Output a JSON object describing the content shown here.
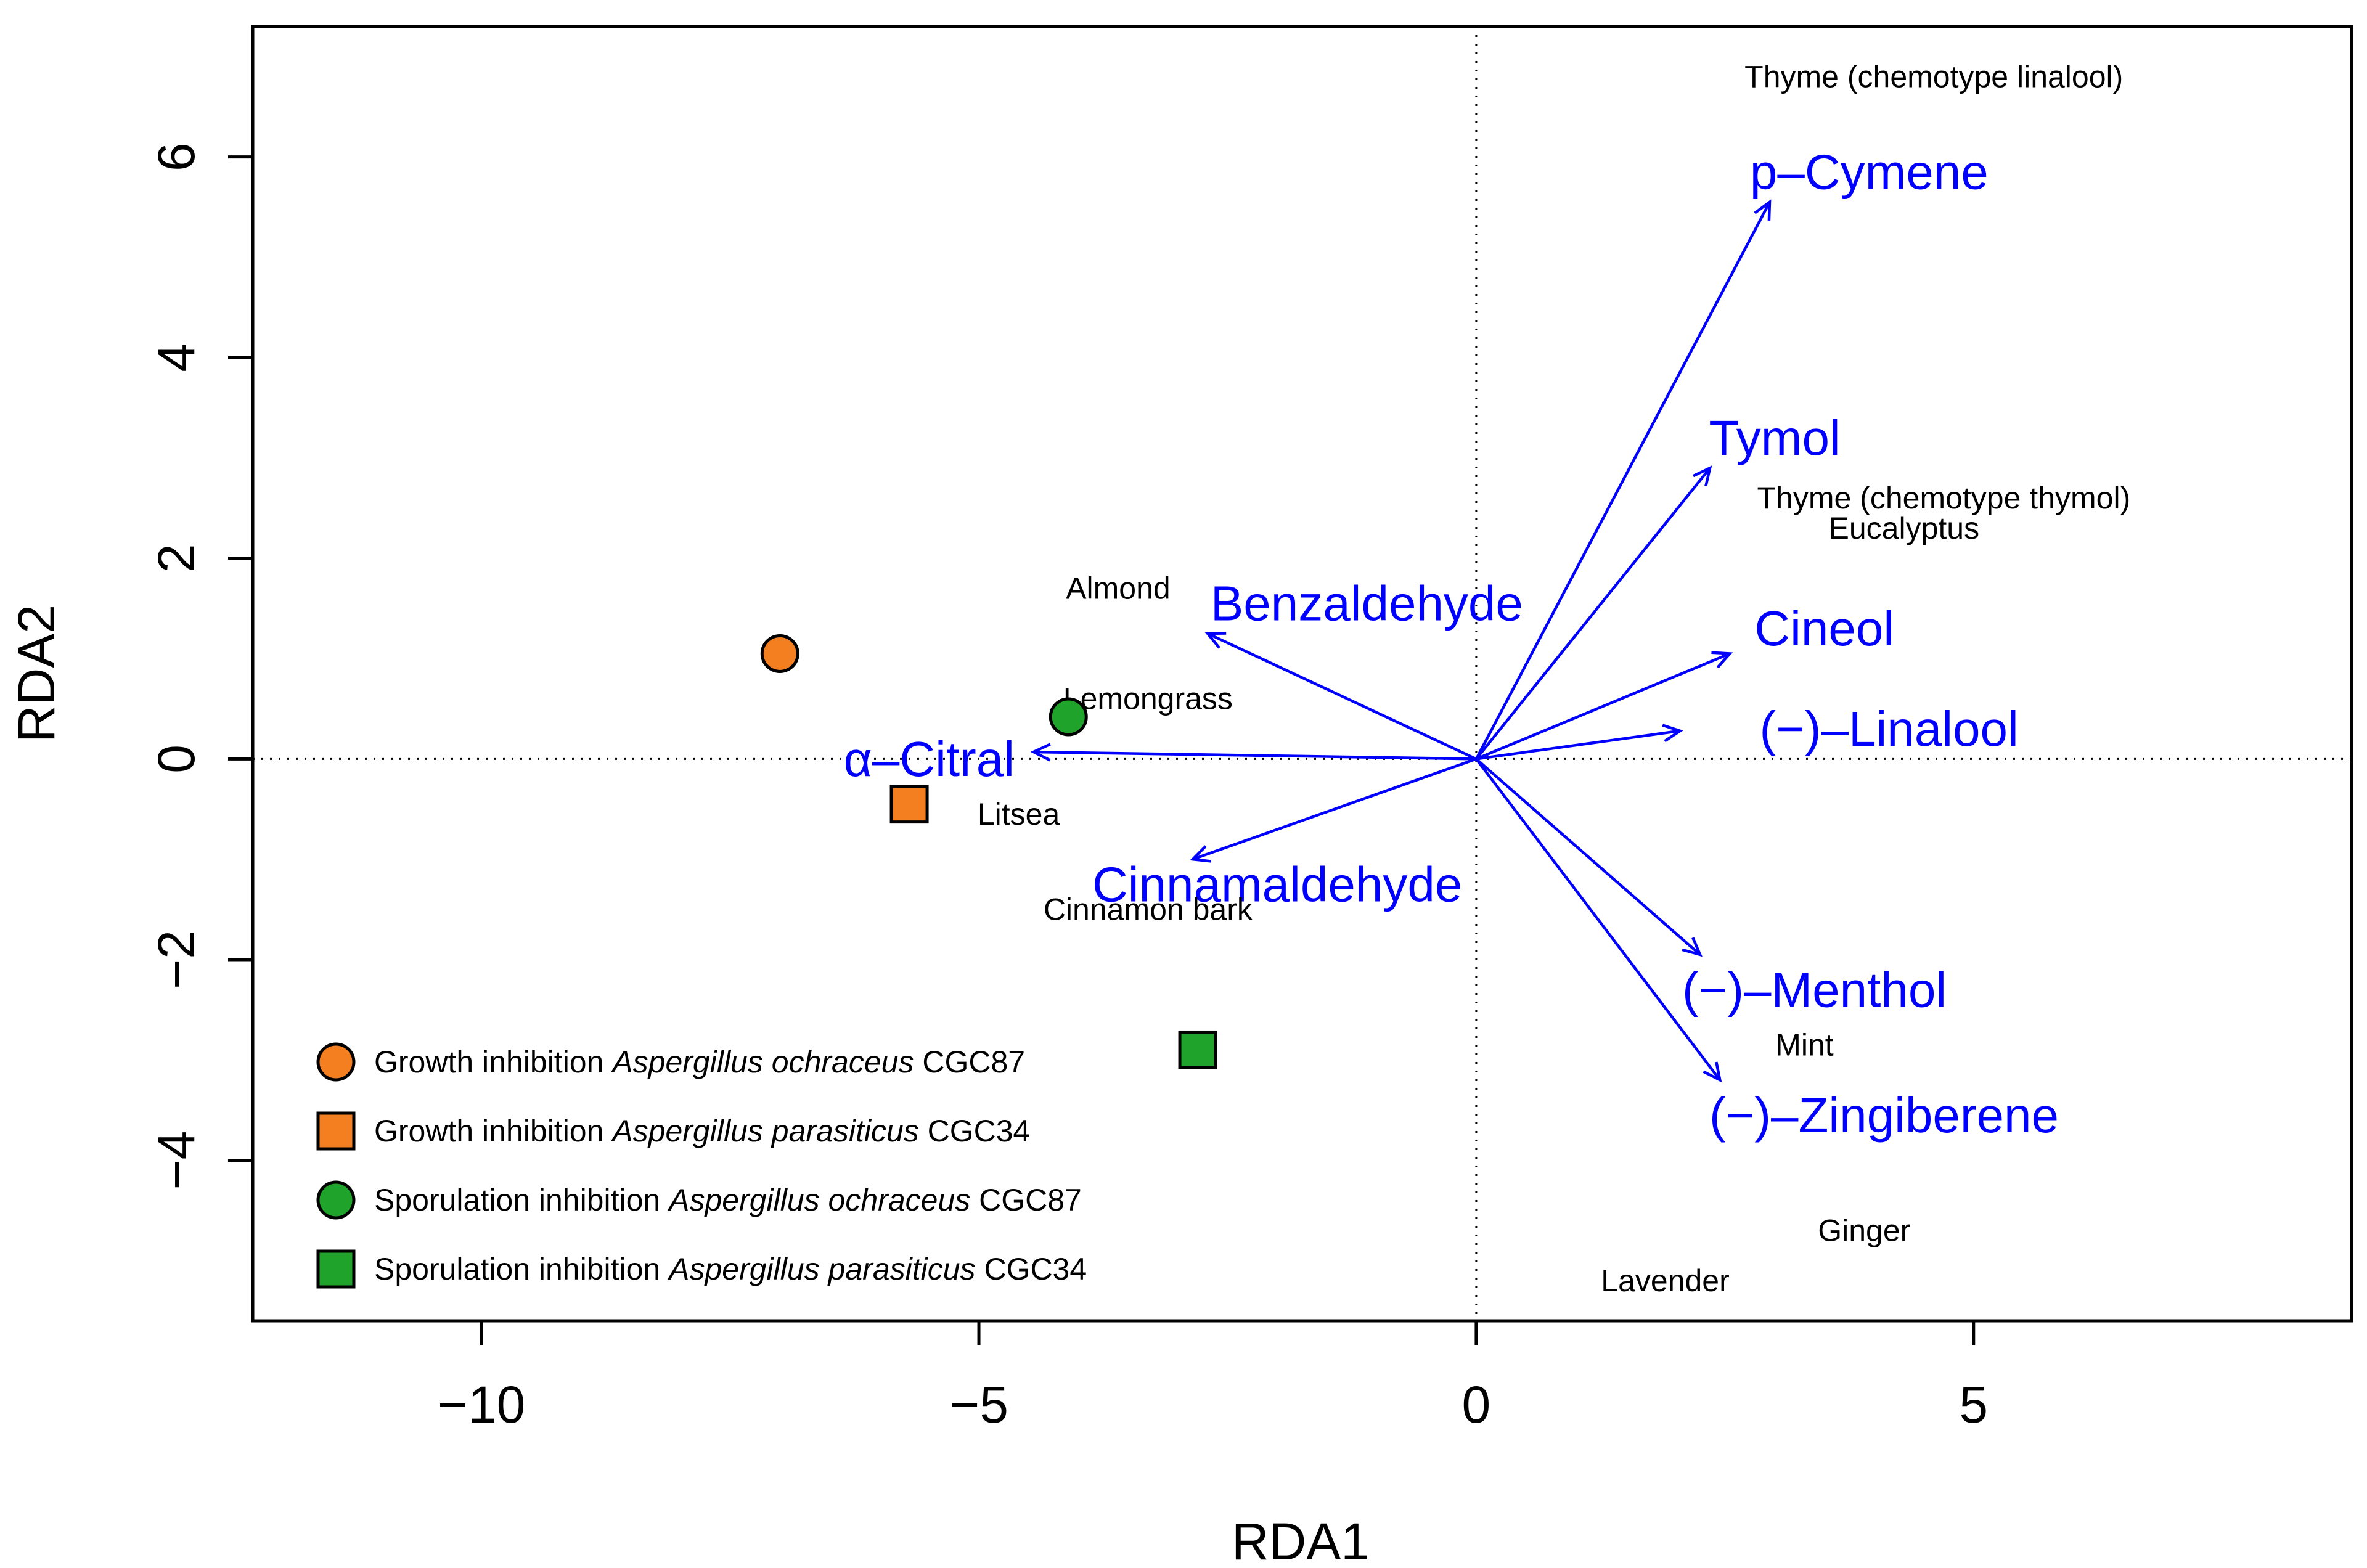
{
  "chart_data": {
    "type": "scatter",
    "subtype": "RDA biplot",
    "xlabel": "RDA1",
    "ylabel": "RDA2",
    "xlim": [
      -12.3,
      8.8
    ],
    "ylim": [
      -5.6,
      7.3
    ],
    "x_ticks": [
      -10,
      -5,
      0,
      5
    ],
    "x_tick_labels": [
      "−10",
      "−5",
      "0",
      "5"
    ],
    "y_ticks": [
      -4,
      -2,
      0,
      2,
      4,
      6
    ],
    "y_tick_labels": [
      "−4",
      "−2",
      "0",
      "2",
      "4",
      "6"
    ],
    "zero_lines": true,
    "grid": false,
    "legend_position": "bottom-left",
    "colors": {
      "orange": "#F47F20",
      "green": "#1FA32A",
      "arrow": "#0000FF",
      "text": "#000000"
    },
    "site_labels": [
      {
        "label": "Thyme (chemotype linalool)",
        "x": 4.6,
        "y": 6.8
      },
      {
        "label": "Thyme (chemotype thymol)",
        "x": 4.7,
        "y": 2.6
      },
      {
        "label": "Eucalyptus",
        "x": 4.3,
        "y": 2.3
      },
      {
        "label": "Almond",
        "x": -3.6,
        "y": 1.7
      },
      {
        "label": "Lemongrass",
        "x": -3.3,
        "y": 0.6
      },
      {
        "label": "Litsea",
        "x": -4.6,
        "y": -0.55
      },
      {
        "label": "Cinnamon bark",
        "x": -3.3,
        "y": -1.5
      },
      {
        "label": "Mint",
        "x": 3.3,
        "y": -2.85
      },
      {
        "label": "Ginger",
        "x": 3.9,
        "y": -4.7
      },
      {
        "label": "Lavender",
        "x": 1.9,
        "y": -5.2
      }
    ],
    "arrows": [
      {
        "label": "p–Cymene",
        "x": 2.95,
        "y": 5.55,
        "label_x": 3.95,
        "label_y": 5.85
      },
      {
        "label": "Tymol",
        "x": 2.35,
        "y": 2.9,
        "label_x": 3.0,
        "label_y": 3.2
      },
      {
        "label": "Benzaldehyde",
        "x": -2.7,
        "y": 1.25,
        "label_x": -1.1,
        "label_y": 1.55
      },
      {
        "label": "Cineol",
        "x": 2.55,
        "y": 1.05,
        "label_x": 3.5,
        "label_y": 1.3
      },
      {
        "label": "(−)–Linalool",
        "x": 2.05,
        "y": 0.28,
        "label_x": 4.15,
        "label_y": 0.3
      },
      {
        "label": "α–Citral",
        "x": -4.45,
        "y": 0.07,
        "label_x": -5.5,
        "label_y": 0.0
      },
      {
        "label": "Cinnamaldehyde",
        "x": -2.85,
        "y": -1.0,
        "label_x": -2.0,
        "label_y": -1.25
      },
      {
        "label": "(−)–Menthol",
        "x": 2.25,
        "y": -1.95,
        "label_x": 3.4,
        "label_y": -2.3
      },
      {
        "label": "(−)–Zingiberene",
        "x": 2.45,
        "y": -3.2,
        "label_x": 4.1,
        "label_y": -3.55
      }
    ],
    "series": [
      {
        "name": "Growth inhibition Aspergillus ochraceus CGC87",
        "name_prefix": "Growth inhibition ",
        "name_italic": "Aspergillus ochraceus",
        "name_suffix": " CGC87",
        "shape": "circle",
        "color": "#F47F20",
        "x": -7.0,
        "y": 1.05
      },
      {
        "name": "Growth inhibition Aspergillus parasiticus CGC34",
        "name_prefix": "Growth inhibition ",
        "name_italic": "Aspergillus parasiticus",
        "name_suffix": " CGC34",
        "shape": "square",
        "color": "#F47F20",
        "x": -5.7,
        "y": -0.45
      },
      {
        "name": "Sporulation inhibition Aspergillus ochraceus CGC87",
        "name_prefix": "Sporulation inhibition ",
        "name_italic": "Aspergillus ochraceus",
        "name_suffix": " CGC87",
        "shape": "circle",
        "color": "#1FA32A",
        "x": -4.1,
        "y": 0.42
      },
      {
        "name": "Sporulation inhibition Aspergillus parasiticus CGC34",
        "name_prefix": "Sporulation inhibition ",
        "name_italic": "Aspergillus parasiticus",
        "name_suffix": " CGC34",
        "shape": "square",
        "color": "#1FA32A",
        "x": -2.8,
        "y": -2.9
      }
    ]
  }
}
